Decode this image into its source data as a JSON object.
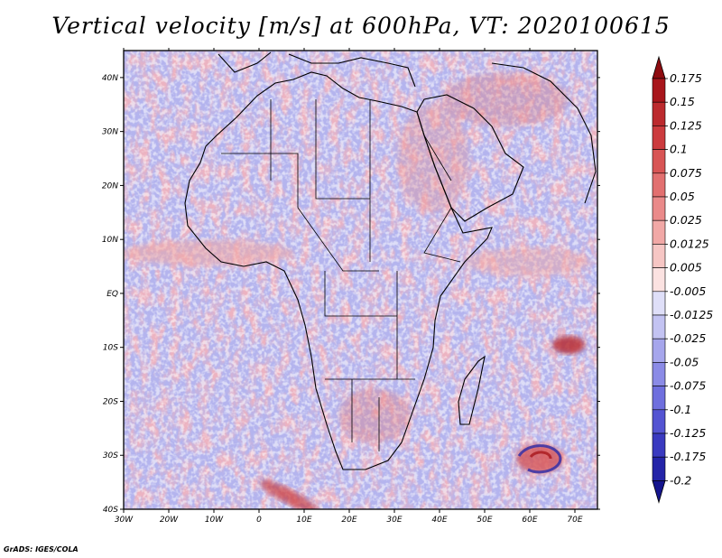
{
  "title": "Vertical velocity [m/s] at 600hPa, VT: 2020100615",
  "credit": "GrADS: IGES/COLA",
  "map": {
    "region": "Africa and surrounding oceans",
    "lon_range": [
      -30,
      75
    ],
    "lat_range": [
      -40,
      45
    ],
    "lat_ticks": [
      {
        "value": 40,
        "label": "40N"
      },
      {
        "value": 30,
        "label": "30N"
      },
      {
        "value": 20,
        "label": "20N"
      },
      {
        "value": 10,
        "label": "10N"
      },
      {
        "value": 0,
        "label": "EQ"
      },
      {
        "value": -10,
        "label": "10S"
      },
      {
        "value": -20,
        "label": "20S"
      },
      {
        "value": -30,
        "label": "30S"
      },
      {
        "value": -40,
        "label": "40S"
      }
    ],
    "lon_ticks": [
      {
        "value": -30,
        "label": "30W"
      },
      {
        "value": -20,
        "label": "20W"
      },
      {
        "value": -10,
        "label": "10W"
      },
      {
        "value": 0,
        "label": "0"
      },
      {
        "value": 10,
        "label": "10E"
      },
      {
        "value": 20,
        "label": "20E"
      },
      {
        "value": 30,
        "label": "30E"
      },
      {
        "value": 40,
        "label": "40E"
      },
      {
        "value": 50,
        "label": "50E"
      },
      {
        "value": 60,
        "label": "60E"
      },
      {
        "value": 70,
        "label": "70E"
      }
    ],
    "features": [
      {
        "name": "cyclonic-vortex",
        "lon": 62,
        "lat": -31,
        "sign": "mixed"
      },
      {
        "name": "updraft-patch",
        "lon": 68,
        "lat": -12,
        "sign": "positive"
      },
      {
        "name": "updraft-streak",
        "lon": 7,
        "lat": -37,
        "sign": "positive"
      }
    ]
  },
  "colorbar": {
    "levels": [
      {
        "label": "0.175",
        "color": "#a8161c"
      },
      {
        "label": "0.15",
        "color": "#bc2a2e"
      },
      {
        "label": "0.125",
        "color": "#cc3b3e"
      },
      {
        "label": "0.1",
        "color": "#d85555"
      },
      {
        "label": "0.075",
        "color": "#e27070"
      },
      {
        "label": "0.05",
        "color": "#ea8a8a"
      },
      {
        "label": "0.025",
        "color": "#f1a8a6"
      },
      {
        "label": "0.0125",
        "color": "#f6c6c4"
      },
      {
        "label": "0.005",
        "color": "#fbe2e1"
      },
      {
        "label": "-0.005",
        "color": "#ffffff"
      },
      {
        "label": "-0.0125",
        "color": "#dfdff8"
      },
      {
        "label": "-0.025",
        "color": "#c3c3f2"
      },
      {
        "label": "-0.05",
        "color": "#a6a6ec"
      },
      {
        "label": "-0.075",
        "color": "#8b8be6"
      },
      {
        "label": "-0.1",
        "color": "#6f6fde"
      },
      {
        "label": "-0.125",
        "color": "#5454d2"
      },
      {
        "label": "-0.175",
        "color": "#3a3ac0"
      },
      {
        "label": "-0.2",
        "color": "#2424a8"
      }
    ],
    "top_arrow_color": "#8e0c10",
    "bottom_arrow_color": "#15158e"
  }
}
